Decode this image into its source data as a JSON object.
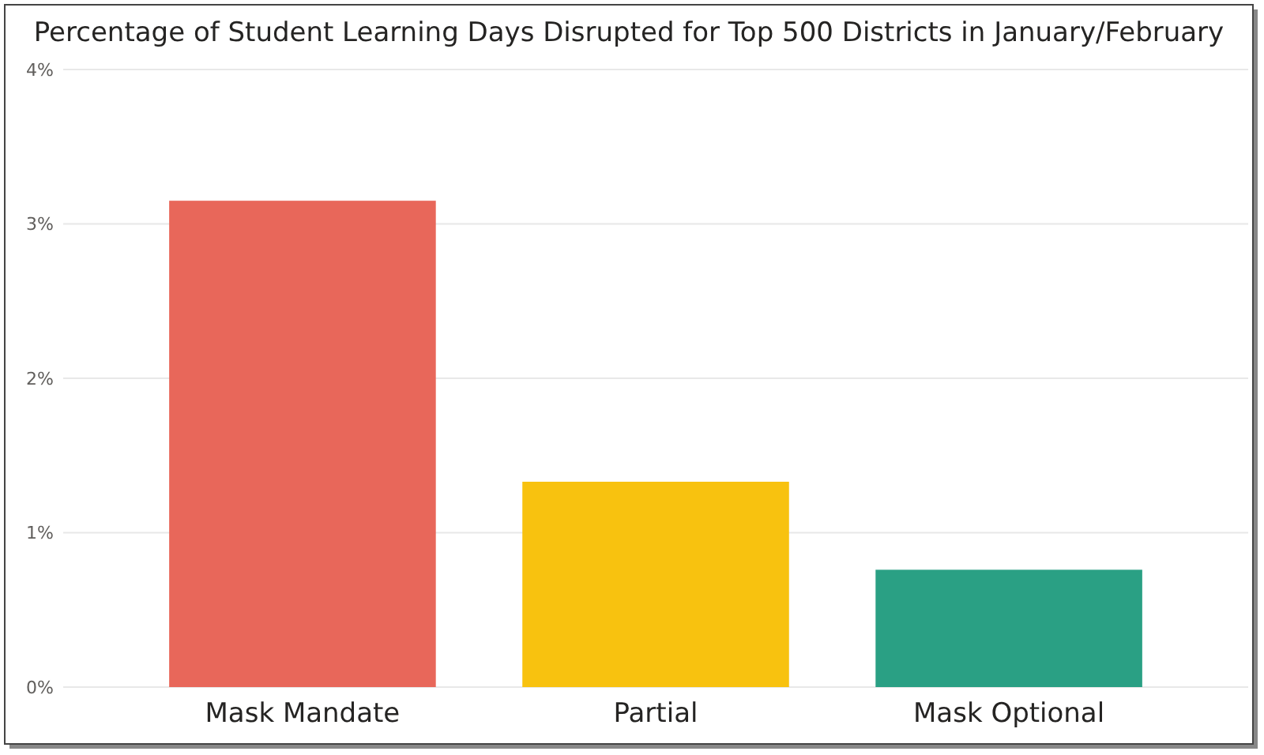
{
  "chart_data": {
    "type": "bar",
    "title": "Percentage of Student Learning Days Disrupted for Top 500 Districts in January/February",
    "categories": [
      "Mask Mandate",
      "Partial",
      "Mask Optional"
    ],
    "values": [
      3.15,
      1.33,
      0.76
    ],
    "colors": [
      "#e8675a",
      "#f8c20f",
      "#2aa084"
    ],
    "ylim": [
      0,
      4
    ],
    "yticks": [
      {
        "value": 0,
        "label": "0%"
      },
      {
        "value": 1,
        "label": "1%"
      },
      {
        "value": 2,
        "label": "2%"
      },
      {
        "value": 3,
        "label": "3%"
      },
      {
        "value": 4,
        "label": "4%"
      }
    ],
    "grid": "y"
  }
}
